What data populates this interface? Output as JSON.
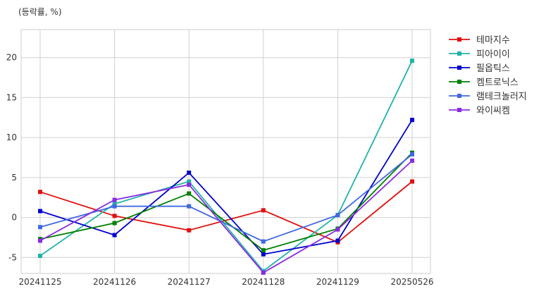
{
  "chart_data": {
    "type": "line",
    "unit_label": "(등락률, %)",
    "categories": [
      "20241125",
      "20241126",
      "20241127",
      "20241128",
      "20241129",
      "20250526"
    ],
    "yticks": [
      -5,
      0,
      5,
      10,
      15,
      20
    ],
    "ylim": [
      -7,
      23.5
    ],
    "grid": true,
    "legend_position": "right-top-outside",
    "series": [
      {
        "name": "테마지수",
        "color": "#e01010",
        "values": [
          3.2,
          0.2,
          -1.6,
          0.9,
          -3.1,
          4.5
        ]
      },
      {
        "name": "피아이이",
        "color": "#20b2aa",
        "values": [
          -4.8,
          1.7,
          4.5,
          -6.7,
          0.3,
          19.6
        ]
      },
      {
        "name": "필옵틱스",
        "color": "#0000cd",
        "values": [
          0.8,
          -2.2,
          5.6,
          -4.6,
          -2.9,
          12.2
        ]
      },
      {
        "name": "켐트로닉스",
        "color": "#008000",
        "values": [
          -2.7,
          -0.7,
          3.0,
          -4.1,
          -1.4,
          8.1
        ]
      },
      {
        "name": "램테크놀러지",
        "color": "#4169e1",
        "values": [
          -1.2,
          1.4,
          1.4,
          -3.0,
          0.3,
          7.9
        ]
      },
      {
        "name": "와이씨켐",
        "color": "#8a2be2",
        "values": [
          -2.9,
          2.2,
          4.1,
          -6.9,
          -1.5,
          7.1
        ]
      }
    ]
  }
}
